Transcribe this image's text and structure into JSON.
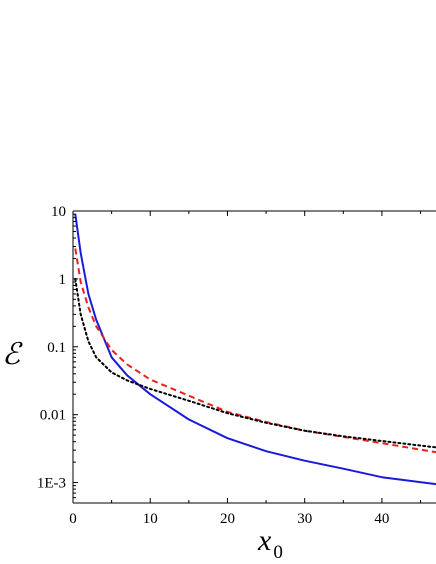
{
  "chart_data": {
    "type": "line",
    "xlabel": "x",
    "xlabel_subscript": "0",
    "ylabel": "ℰ",
    "xlim": [
      0,
      47
    ],
    "ylim": [
      0.0005,
      10
    ],
    "yscale": "log",
    "grid": false,
    "x_ticks": [
      0,
      10,
      20,
      30,
      40
    ],
    "x_tick_labels": [
      "0",
      "10",
      "20",
      "30",
      "40"
    ],
    "y_ticks": [
      0.001,
      0.01,
      0.1,
      1,
      10
    ],
    "y_tick_labels": [
      "1E-3",
      "0.01",
      "0.1",
      "1",
      "10"
    ],
    "series": [
      {
        "style": "solid",
        "color": "#1a1adc",
        "x": [
          0.3,
          1,
          2,
          3,
          5,
          7,
          10,
          15,
          20,
          25,
          30,
          35,
          40,
          47
        ],
        "y": [
          9,
          2.4,
          0.6,
          0.25,
          0.07,
          0.038,
          0.02,
          0.0085,
          0.0045,
          0.0029,
          0.0021,
          0.0016,
          0.0012,
          0.00095
        ]
      },
      {
        "style": "dashed",
        "color": "#e8211d",
        "x": [
          0.3,
          1,
          2,
          3,
          5,
          7,
          10,
          15,
          20,
          25,
          30,
          35,
          40,
          47
        ],
        "y": [
          2.8,
          0.9,
          0.38,
          0.2,
          0.09,
          0.055,
          0.033,
          0.019,
          0.011,
          0.0078,
          0.0058,
          0.0047,
          0.0038,
          0.0028
        ]
      },
      {
        "style": "dotted",
        "color": "#000000",
        "x": [
          0.3,
          1,
          2,
          3,
          5,
          7,
          10,
          15,
          20,
          25,
          30,
          35,
          40,
          47
        ],
        "y": [
          1.0,
          0.3,
          0.12,
          0.07,
          0.042,
          0.032,
          0.024,
          0.016,
          0.0105,
          0.0076,
          0.0058,
          0.0048,
          0.0041,
          0.0033
        ]
      }
    ]
  }
}
